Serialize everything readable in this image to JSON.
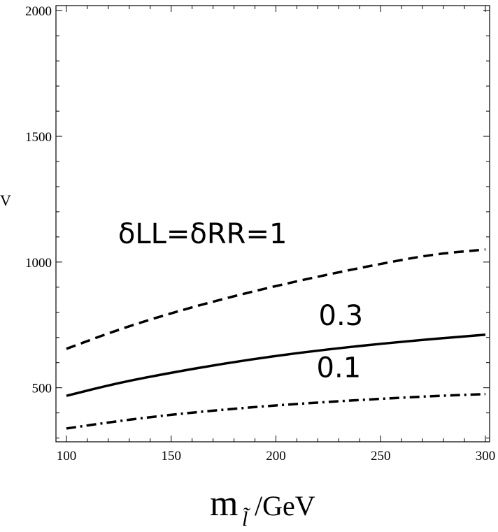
{
  "chart_data": {
    "type": "line",
    "title": "",
    "xlabel": {
      "main": "m",
      "sub": "l̃",
      "unit": "/GeV"
    },
    "ylabel_fragment": "V",
    "xlim": [
      95,
      302
    ],
    "ylim": [
      285,
      2020
    ],
    "x_ticks": [
      "100",
      "150",
      "200",
      "250",
      "300"
    ],
    "y_ticks": [
      "500",
      "1000",
      "1500",
      "2000"
    ],
    "x": [
      100,
      125,
      150,
      175,
      200,
      225,
      250,
      275,
      300
    ],
    "series": [
      {
        "name": "δLL=δRR=1",
        "style": "dashed",
        "values": [
          655,
          732,
          797,
          854,
          905,
          951,
          993,
          1031,
          1050
        ]
      },
      {
        "name": "0.3",
        "style": "solid",
        "values": [
          468,
          520,
          560,
          596,
          627,
          653,
          675,
          694,
          711
        ]
      },
      {
        "name": "0.1",
        "style": "dashdot",
        "values": [
          338,
          368,
          393,
          413,
          430,
          444,
          456,
          467,
          475
        ]
      }
    ],
    "annotations": [
      {
        "text": "δLL=δRR=1",
        "x": 165,
        "y": 1075
      },
      {
        "text": "0.3",
        "x": 231,
        "y": 750
      },
      {
        "text": "0.1",
        "x": 230,
        "y": 542
      }
    ],
    "grid": false,
    "legend": "none"
  }
}
